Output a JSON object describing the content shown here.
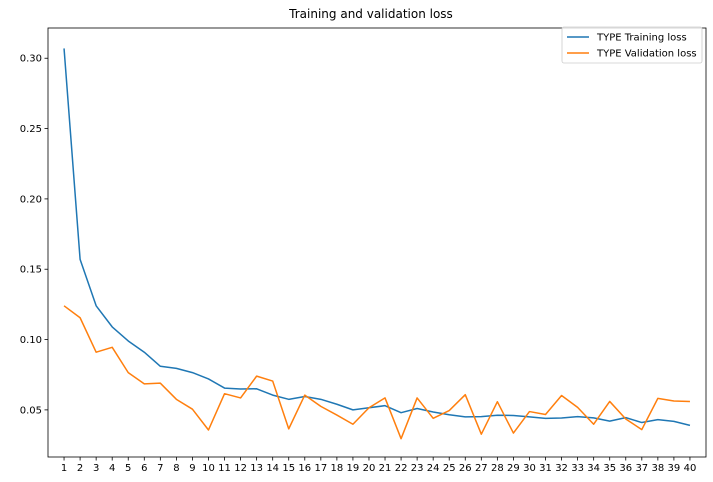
{
  "chart_data": {
    "type": "line",
    "title": "Training and validation loss",
    "xlabel": "",
    "ylabel": "",
    "x": [
      1,
      2,
      3,
      4,
      5,
      6,
      7,
      8,
      9,
      10,
      11,
      12,
      13,
      14,
      15,
      16,
      17,
      18,
      19,
      20,
      21,
      22,
      23,
      24,
      25,
      26,
      27,
      28,
      29,
      30,
      31,
      32,
      33,
      34,
      35,
      36,
      37,
      38,
      39,
      40
    ],
    "xticks": [
      "1",
      "2",
      "3",
      "4",
      "5",
      "6",
      "7",
      "8",
      "9",
      "10",
      "11",
      "12",
      "13",
      "14",
      "15",
      "16",
      "17",
      "18",
      "19",
      "20",
      "21",
      "22",
      "23",
      "24",
      "25",
      "26",
      "27",
      "28",
      "29",
      "30",
      "31",
      "32",
      "33",
      "34",
      "35",
      "36",
      "37",
      "38",
      "39",
      "40"
    ],
    "yticks": [
      0.05,
      0.1,
      0.15,
      0.2,
      0.25,
      0.3
    ],
    "ytick_labels": [
      "0.05",
      "0.10",
      "0.15",
      "0.20",
      "0.25",
      "0.30"
    ],
    "ylim": [
      0.0165,
      0.3215
    ],
    "xlim": [
      0,
      41
    ],
    "grid": false,
    "legend_position": "top-right",
    "series": [
      {
        "name": "TYPE Training loss",
        "color": "#1f77b4",
        "values": [
          0.307,
          0.157,
          0.124,
          0.109,
          0.099,
          0.091,
          0.081,
          0.0795,
          0.0765,
          0.072,
          0.0655,
          0.0648,
          0.065,
          0.0605,
          0.0575,
          0.0595,
          0.0575,
          0.054,
          0.05,
          0.0515,
          0.053,
          0.048,
          0.051,
          0.0485,
          0.0465,
          0.045,
          0.0452,
          0.0462,
          0.046,
          0.045,
          0.044,
          0.0442,
          0.0452,
          0.0443,
          0.042,
          0.0445,
          0.041,
          0.0431,
          0.0418,
          0.039
        ]
      },
      {
        "name": "TYPE Validation loss",
        "color": "#ff7f0e",
        "values": [
          0.124,
          0.1155,
          0.091,
          0.0945,
          0.0765,
          0.0685,
          0.069,
          0.0575,
          0.0505,
          0.0357,
          0.0615,
          0.0585,
          0.074,
          0.0705,
          0.0365,
          0.0605,
          0.0525,
          0.0463,
          0.0398,
          0.0515,
          0.0585,
          0.0295,
          0.0585,
          0.044,
          0.0495,
          0.0608,
          0.0327,
          0.0558,
          0.0335,
          0.0488,
          0.0467,
          0.0602,
          0.0518,
          0.0398,
          0.056,
          0.0435,
          0.036,
          0.0582,
          0.0563,
          0.056
        ]
      }
    ]
  }
}
